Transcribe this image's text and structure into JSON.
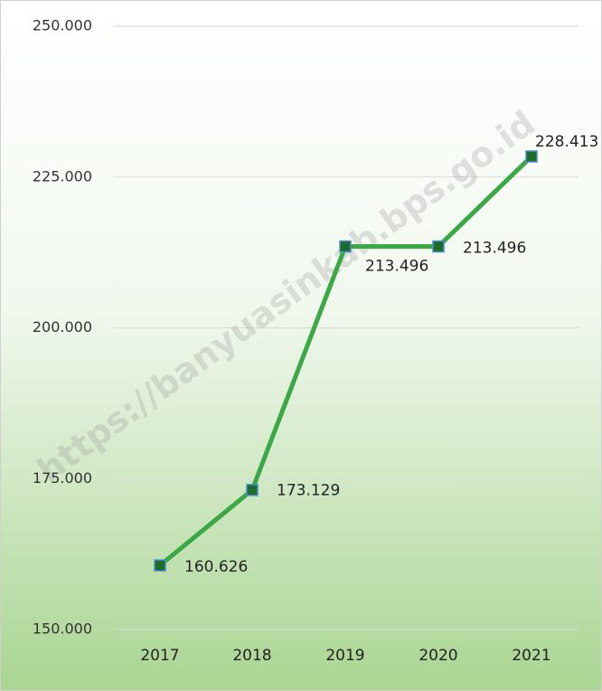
{
  "chart_data": {
    "type": "line",
    "watermark": "https://banyuasinkab.bps.go.id",
    "categories": [
      "2017",
      "2018",
      "2019",
      "2020",
      "2021"
    ],
    "series": [
      {
        "name": null,
        "color": "#3aa845",
        "marker_color": "#1f6b2e",
        "values": [
          160626,
          173129,
          213496,
          213496,
          228413
        ],
        "value_labels": [
          "160.626",
          "173.129",
          "213.496",
          "213.496",
          "228.413"
        ]
      }
    ],
    "ylim": [
      150000,
      250000
    ],
    "yticks": [
      {
        "value": 150000,
        "label": "150.000"
      },
      {
        "value": 175000,
        "label": "175.000"
      },
      {
        "value": 200000,
        "label": "200.000"
      },
      {
        "value": 225000,
        "label": "225.000"
      },
      {
        "value": 250000,
        "label": "250.000"
      }
    ],
    "grid": true
  }
}
